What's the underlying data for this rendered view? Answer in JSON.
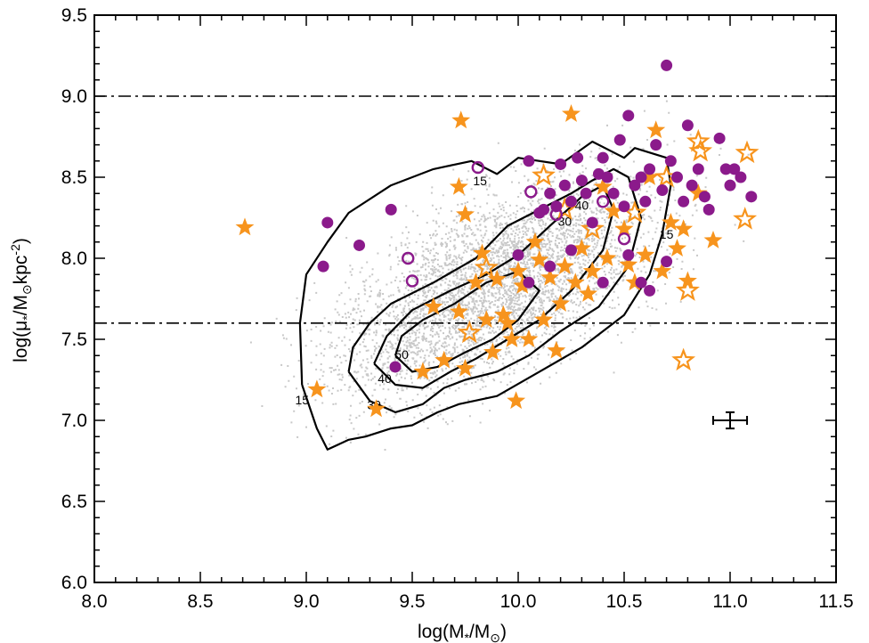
{
  "chart_data": {
    "type": "scatter",
    "title": "",
    "xlabel_parts": {
      "prefix": "log(M",
      "sub1": "*",
      "mid": "/M",
      "sub2": "⊙",
      "suffix": ")"
    },
    "ylabel_parts": {
      "prefix": "log(μ",
      "sub1": "*",
      "mid": "/M",
      "sub2": "⊙",
      "unit": "kpc",
      "sup": "-2",
      "suffix": ")"
    },
    "xlim": [
      8.0,
      11.5
    ],
    "ylim": [
      6.0,
      9.5
    ],
    "xticks": [
      "8.0",
      "8.5",
      "9.0",
      "9.5",
      "10.0",
      "10.5",
      "11.0",
      "11.5"
    ],
    "yticks": [
      "6.0",
      "6.5",
      "7.0",
      "7.5",
      "8.0",
      "8.5",
      "9.0",
      "9.5"
    ],
    "reference_lines_y": [
      9.0,
      7.6
    ],
    "colors": {
      "background_points": "#c8c8c8",
      "orange": "#f7941d",
      "purple": "#8b1a8b",
      "contour": "#000000"
    },
    "contour_labels": [
      {
        "text": "15",
        "x": 9.82,
        "y": 8.45
      },
      {
        "text": "15",
        "x": 8.98,
        "y": 7.1
      },
      {
        "text": "30",
        "x": 9.32,
        "y": 7.07
      },
      {
        "text": "40",
        "x": 9.37,
        "y": 7.23
      },
      {
        "text": "50",
        "x": 9.45,
        "y": 7.38
      },
      {
        "text": "40",
        "x": 10.3,
        "y": 8.3
      },
      {
        "text": "30",
        "x": 10.22,
        "y": 8.2
      },
      {
        "text": "15",
        "x": 10.7,
        "y": 8.12
      }
    ],
    "contours": [
      {
        "level": 15,
        "x": [
          8.98,
          9.05,
          9.1,
          9.2,
          9.28,
          9.4,
          9.5,
          9.62,
          9.72,
          9.9,
          10.1,
          10.3,
          10.5,
          10.62,
          10.68,
          10.72,
          10.7,
          10.55,
          10.5,
          10.35,
          10.2,
          10.0,
          9.9,
          9.78,
          9.6,
          9.4,
          9.2,
          9.1,
          9.0,
          8.97,
          8.98
        ],
        "y": [
          7.22,
          6.95,
          6.82,
          6.88,
          6.9,
          6.95,
          6.97,
          7.05,
          7.1,
          7.15,
          7.3,
          7.45,
          7.65,
          7.9,
          8.15,
          8.45,
          8.62,
          8.68,
          8.62,
          8.72,
          8.58,
          8.62,
          8.52,
          8.6,
          8.55,
          8.45,
          8.28,
          8.1,
          7.9,
          7.6,
          7.22
        ]
      },
      {
        "level": 30,
        "x": [
          9.2,
          9.3,
          9.42,
          9.55,
          9.65,
          9.75,
          9.9,
          10.05,
          10.2,
          10.38,
          10.52,
          10.58,
          10.52,
          10.45,
          10.35,
          10.25,
          10.1,
          9.95,
          9.8,
          9.6,
          9.4,
          9.3,
          9.22,
          9.2
        ],
        "y": [
          7.3,
          7.12,
          7.05,
          7.1,
          7.2,
          7.25,
          7.3,
          7.4,
          7.55,
          7.7,
          7.95,
          8.25,
          8.5,
          8.55,
          8.48,
          8.4,
          8.3,
          8.2,
          8.0,
          7.85,
          7.72,
          7.6,
          7.45,
          7.3
        ]
      },
      {
        "level": 40,
        "x": [
          9.32,
          9.42,
          9.55,
          9.68,
          9.8,
          9.95,
          10.1,
          10.25,
          10.4,
          10.45,
          10.4,
          10.3,
          10.15,
          10.0,
          9.85,
          9.68,
          9.5,
          9.38,
          9.32
        ],
        "y": [
          7.35,
          7.22,
          7.2,
          7.3,
          7.38,
          7.5,
          7.62,
          7.8,
          8.05,
          8.3,
          8.45,
          8.38,
          8.2,
          8.02,
          7.9,
          7.8,
          7.68,
          7.52,
          7.35
        ]
      },
      {
        "level": 50,
        "x": [
          9.42,
          9.5,
          9.62,
          9.75,
          9.88,
          10.0,
          10.1,
          10.0,
          9.85,
          9.7,
          9.55,
          9.45,
          9.42
        ],
        "y": [
          7.4,
          7.3,
          7.33,
          7.42,
          7.5,
          7.62,
          7.8,
          7.92,
          7.85,
          7.72,
          7.62,
          7.52,
          7.4
        ]
      }
    ],
    "series": [
      {
        "marker": "star-filled",
        "color": "orange",
        "points": [
          [
            8.71,
            8.19
          ],
          [
            9.05,
            7.19
          ],
          [
            9.33,
            7.07
          ],
          [
            9.55,
            7.3
          ],
          [
            9.6,
            7.7
          ],
          [
            9.65,
            7.37
          ],
          [
            9.72,
            7.67
          ],
          [
            9.75,
            7.32
          ],
          [
            9.73,
            8.85
          ],
          [
            9.72,
            8.44
          ],
          [
            9.75,
            8.27
          ],
          [
            9.8,
            7.85
          ],
          [
            9.83,
            8.03
          ],
          [
            9.85,
            7.62
          ],
          [
            9.88,
            7.42
          ],
          [
            9.9,
            7.87
          ],
          [
            9.93,
            7.65
          ],
          [
            9.95,
            7.6
          ],
          [
            9.97,
            7.5
          ],
          [
            9.99,
            7.12
          ],
          [
            10.0,
            7.92
          ],
          [
            10.02,
            7.83
          ],
          [
            10.05,
            7.5
          ],
          [
            10.08,
            8.1
          ],
          [
            10.1,
            7.99
          ],
          [
            10.12,
            7.62
          ],
          [
            10.15,
            7.88
          ],
          [
            10.18,
            7.43
          ],
          [
            10.2,
            7.72
          ],
          [
            10.22,
            7.95
          ],
          [
            10.25,
            8.89
          ],
          [
            10.27,
            7.85
          ],
          [
            10.3,
            8.06
          ],
          [
            10.33,
            7.78
          ],
          [
            10.35,
            7.92
          ],
          [
            10.4,
            8.44
          ],
          [
            10.42,
            8.0
          ],
          [
            10.45,
            8.29
          ],
          [
            10.5,
            8.18
          ],
          [
            10.52,
            7.96
          ],
          [
            10.55,
            7.85
          ],
          [
            10.6,
            8.02
          ],
          [
            10.62,
            8.5
          ],
          [
            10.65,
            8.79
          ],
          [
            10.68,
            7.92
          ],
          [
            10.72,
            8.22
          ],
          [
            10.75,
            8.06
          ],
          [
            10.78,
            8.18
          ],
          [
            10.8,
            7.86
          ],
          [
            10.85,
            8.4
          ],
          [
            10.92,
            8.11
          ]
        ]
      },
      {
        "marker": "star-open",
        "color": "orange",
        "points": [
          [
            9.77,
            7.54
          ],
          [
            9.85,
            7.94
          ],
          [
            10.12,
            8.51
          ],
          [
            10.22,
            8.3
          ],
          [
            10.35,
            8.18
          ],
          [
            10.55,
            8.28
          ],
          [
            10.7,
            8.5
          ],
          [
            10.78,
            7.37
          ],
          [
            10.8,
            7.8
          ],
          [
            10.85,
            8.72
          ],
          [
            10.86,
            8.66
          ],
          [
            11.08,
            8.65
          ],
          [
            11.07,
            8.24
          ]
        ]
      },
      {
        "marker": "circle-filled",
        "color": "purple",
        "points": [
          [
            9.08,
            7.95
          ],
          [
            9.1,
            8.22
          ],
          [
            9.25,
            8.08
          ],
          [
            9.4,
            8.3
          ],
          [
            9.42,
            7.33
          ],
          [
            10.05,
            8.6
          ],
          [
            10.12,
            8.3
          ],
          [
            10.15,
            8.4
          ],
          [
            10.18,
            8.32
          ],
          [
            10.2,
            8.58
          ],
          [
            10.22,
            8.45
          ],
          [
            10.25,
            8.35
          ],
          [
            10.28,
            8.62
          ],
          [
            10.3,
            8.48
          ],
          [
            10.32,
            8.4
          ],
          [
            10.35,
            8.22
          ],
          [
            10.38,
            8.52
          ],
          [
            10.4,
            8.62
          ],
          [
            10.42,
            8.5
          ],
          [
            10.45,
            8.4
          ],
          [
            10.48,
            8.73
          ],
          [
            10.5,
            8.32
          ],
          [
            10.52,
            8.88
          ],
          [
            10.55,
            8.45
          ],
          [
            10.58,
            8.5
          ],
          [
            10.6,
            8.35
          ],
          [
            10.62,
            8.55
          ],
          [
            10.65,
            8.7
          ],
          [
            10.68,
            8.42
          ],
          [
            10.7,
            9.19
          ],
          [
            10.72,
            8.6
          ],
          [
            10.75,
            8.5
          ],
          [
            10.78,
            8.35
          ],
          [
            10.8,
            8.82
          ],
          [
            10.82,
            8.45
          ],
          [
            10.85,
            8.55
          ],
          [
            10.88,
            8.38
          ],
          [
            10.9,
            8.3
          ],
          [
            10.95,
            8.74
          ],
          [
            10.98,
            8.55
          ],
          [
            11.0,
            8.45
          ],
          [
            11.02,
            8.55
          ],
          [
            11.05,
            8.5
          ],
          [
            11.1,
            8.38
          ],
          [
            10.0,
            8.02
          ],
          [
            10.05,
            7.85
          ],
          [
            10.15,
            7.95
          ],
          [
            10.25,
            8.05
          ],
          [
            10.4,
            7.85
          ],
          [
            10.52,
            8.02
          ],
          [
            10.58,
            7.85
          ],
          [
            10.62,
            7.8
          ],
          [
            10.7,
            7.98
          ],
          [
            10.1,
            8.28
          ]
        ]
      },
      {
        "marker": "circle-open",
        "color": "purple",
        "points": [
          [
            9.48,
            8.0
          ],
          [
            9.5,
            7.86
          ],
          [
            9.81,
            8.56
          ],
          [
            10.06,
            8.41
          ],
          [
            10.18,
            8.27
          ],
          [
            10.4,
            8.35
          ],
          [
            10.5,
            8.12
          ]
        ]
      }
    ],
    "error_bar": {
      "x": 11.0,
      "y": 7.0,
      "xerr": 0.08,
      "yerr": 0.05
    }
  },
  "labels": {
    "xtitle_text": "log(M*/M⊙)",
    "ytitle_text": "log(μ*/M⊙kpc-2)"
  }
}
